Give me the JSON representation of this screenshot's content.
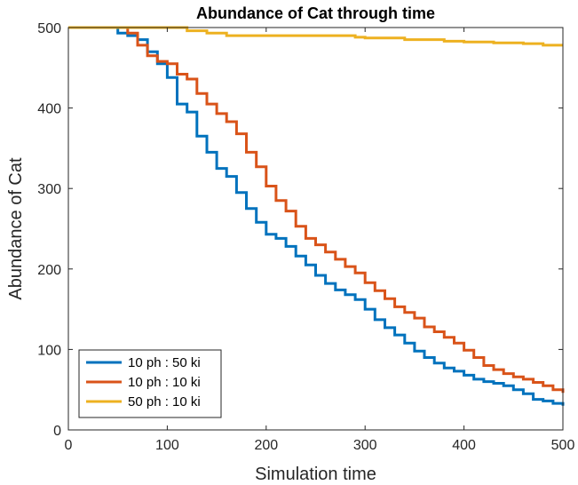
{
  "chart_data": {
    "type": "line",
    "title": "Abundance of Cat through time",
    "xlabel": "Simulation time",
    "ylabel": "Abundance of Cat",
    "xlim": [
      0,
      500
    ],
    "ylim": [
      0,
      500
    ],
    "xticks": [
      0,
      100,
      200,
      300,
      400,
      500
    ],
    "yticks": [
      0,
      100,
      200,
      300,
      400,
      500
    ],
    "xtick_labels": [
      "0",
      "100",
      "200",
      "300",
      "400",
      "500"
    ],
    "ytick_labels": [
      "0",
      "100",
      "200",
      "300",
      "400",
      "500"
    ],
    "grid": false,
    "legend_position": "bottom-left",
    "series": [
      {
        "name": "10 ph : 50 ki",
        "color": "#0072BD",
        "x": [
          0,
          40,
          50,
          60,
          70,
          80,
          90,
          100,
          110,
          120,
          130,
          140,
          150,
          160,
          170,
          180,
          190,
          200,
          210,
          220,
          230,
          240,
          250,
          260,
          270,
          280,
          290,
          300,
          310,
          320,
          330,
          340,
          350,
          360,
          370,
          380,
          390,
          400,
          410,
          420,
          430,
          440,
          450,
          460,
          470,
          480,
          490,
          500
        ],
        "y": [
          500,
          500,
          493,
          490,
          485,
          470,
          455,
          438,
          405,
          395,
          365,
          345,
          325,
          315,
          295,
          275,
          258,
          243,
          238,
          228,
          216,
          205,
          192,
          182,
          174,
          168,
          162,
          150,
          137,
          127,
          118,
          108,
          98,
          90,
          83,
          77,
          73,
          68,
          63,
          60,
          58,
          55,
          50,
          45,
          38,
          36,
          33,
          30
        ]
      },
      {
        "name": "10 ph : 10 ki",
        "color": "#D95319",
        "x": [
          0,
          50,
          60,
          70,
          80,
          90,
          100,
          110,
          120,
          130,
          140,
          150,
          160,
          170,
          180,
          190,
          200,
          210,
          220,
          230,
          240,
          250,
          260,
          270,
          280,
          290,
          300,
          310,
          320,
          330,
          340,
          350,
          360,
          370,
          380,
          390,
          400,
          410,
          420,
          430,
          440,
          450,
          460,
          470,
          480,
          490,
          500
        ],
        "y": [
          500,
          500,
          493,
          478,
          465,
          458,
          455,
          442,
          436,
          418,
          405,
          393,
          383,
          368,
          345,
          327,
          303,
          285,
          272,
          253,
          238,
          230,
          221,
          212,
          203,
          195,
          183,
          173,
          163,
          153,
          146,
          139,
          128,
          122,
          115,
          108,
          99,
          90,
          80,
          75,
          70,
          66,
          63,
          59,
          55,
          50,
          46
        ]
      },
      {
        "name": "50 ph : 10 ki",
        "color": "#EDB120",
        "x": [
          0,
          100,
          120,
          140,
          160,
          200,
          270,
          290,
          300,
          340,
          370,
          380,
          400,
          430,
          460,
          480,
          500
        ],
        "y": [
          500,
          500,
          496,
          493,
          490,
          490,
          490,
          488,
          487,
          485,
          485,
          483,
          482,
          481,
          480,
          478,
          478
        ]
      }
    ]
  }
}
